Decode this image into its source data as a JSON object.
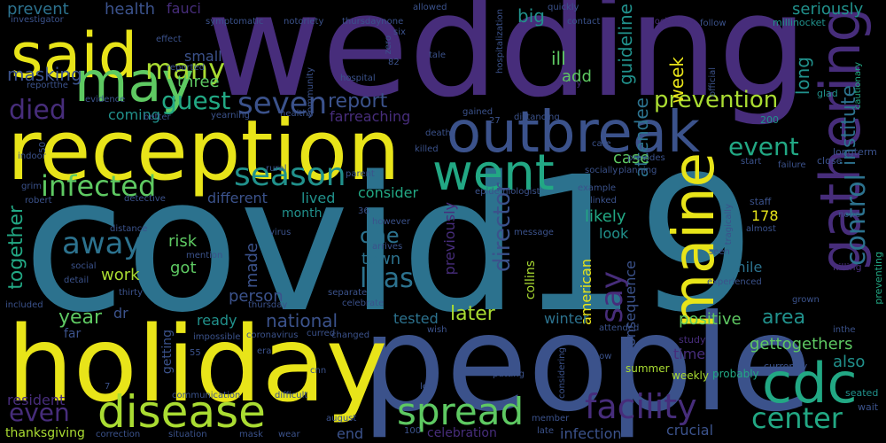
{
  "palette": {
    "background": "#000000",
    "yellow": "#e8e419",
    "lime": "#aadc32",
    "green": "#5ec962",
    "teal": "#22a884",
    "cyan": "#21918c",
    "blue": "#2c728e",
    "indigo": "#3b528b",
    "purple": "#472d7b",
    "violet": "#440154"
  },
  "words": [
    {
      "text": "covid19",
      "color": "#2c728e"
    },
    {
      "text": "wedding",
      "color": "#472d7b"
    },
    {
      "text": "people",
      "color": "#3b528b"
    },
    {
      "text": "holiday",
      "color": "#e8e419"
    },
    {
      "text": "reception",
      "color": "#e8e419"
    },
    {
      "text": "outbreak",
      "color": "#3b528b"
    },
    {
      "text": "said",
      "color": "#e8e419"
    },
    {
      "text": "may",
      "color": "#5ec962"
    },
    {
      "text": "went",
      "color": "#22a884"
    },
    {
      "text": "gathering",
      "color": "#472d7b"
    },
    {
      "text": "maine",
      "color": "#e8e419"
    },
    {
      "text": "cdc",
      "color": "#22a884"
    },
    {
      "text": "disease",
      "color": "#aadc32"
    },
    {
      "text": "spread",
      "color": "#5ec962"
    },
    {
      "text": "facility",
      "color": "#472d7b"
    },
    {
      "text": "center",
      "color": "#22a884"
    },
    {
      "text": "control",
      "color": "#2c728e"
    },
    {
      "text": "season",
      "color": "#21918c"
    },
    {
      "text": "infected",
      "color": "#5ec962"
    },
    {
      "text": "away",
      "color": "#2c728e"
    },
    {
      "text": "least",
      "color": "#2c728e"
    },
    {
      "text": "seven",
      "color": "#3b528b"
    },
    {
      "text": "many",
      "color": "#aadc32"
    },
    {
      "text": "guest",
      "color": "#22a884"
    },
    {
      "text": "died",
      "color": "#472d7b"
    },
    {
      "text": "even",
      "color": "#472d7b"
    },
    {
      "text": "event",
      "color": "#22a884"
    },
    {
      "text": "prevention",
      "color": "#aadc32"
    },
    {
      "text": "report",
      "color": "#3b528b"
    },
    {
      "text": "one",
      "color": "#2c728e"
    },
    {
      "text": "say",
      "color": "#472d7b"
    },
    {
      "text": "director",
      "color": "#3b528b"
    },
    {
      "text": "institute",
      "color": "#2c728e"
    },
    {
      "text": "long",
      "color": "#21918c"
    },
    {
      "text": "seriously",
      "color": "#21918c"
    },
    {
      "text": "guideline",
      "color": "#21918c"
    },
    {
      "text": "attendee",
      "color": "#2c728e"
    },
    {
      "text": "week",
      "color": "#e8e419"
    },
    {
      "text": "big",
      "color": "#21918c"
    },
    {
      "text": "ill",
      "color": "#5ec962"
    },
    {
      "text": "add",
      "color": "#5ec962"
    },
    {
      "text": "health",
      "color": "#3b528b"
    },
    {
      "text": "fauci",
      "color": "#472d7b"
    },
    {
      "text": "prevent",
      "color": "#2c728e"
    },
    {
      "text": "masking",
      "color": "#3b528b"
    },
    {
      "text": "small",
      "color": "#3b528b"
    },
    {
      "text": "three",
      "color": "#5ec962"
    },
    {
      "text": "coming",
      "color": "#21918c"
    },
    {
      "text": "farreaching",
      "color": "#472d7b"
    },
    {
      "text": "consider",
      "color": "#22a884"
    },
    {
      "text": "case",
      "color": "#5ec962"
    },
    {
      "text": "different",
      "color": "#3b528b"
    },
    {
      "text": "lived",
      "color": "#21918c"
    },
    {
      "text": "month",
      "color": "#21918c"
    },
    {
      "text": "likely",
      "color": "#22a884"
    },
    {
      "text": "look",
      "color": "#21918c"
    },
    {
      "text": "178",
      "color": "#e8e419"
    },
    {
      "text": "together",
      "color": "#22a884"
    },
    {
      "text": "risk",
      "color": "#5ec962"
    },
    {
      "text": "got",
      "color": "#5ec962"
    },
    {
      "text": "made",
      "color": "#3b528b"
    },
    {
      "text": "town",
      "color": "#2c728e"
    },
    {
      "text": "person",
      "color": "#3b528b"
    },
    {
      "text": "work",
      "color": "#aadc32"
    },
    {
      "text": "previously",
      "color": "#472d7b"
    },
    {
      "text": "american",
      "color": "#e8e419"
    },
    {
      "text": "mile",
      "color": "#2c728e"
    },
    {
      "text": "year",
      "color": "#5ec962"
    },
    {
      "text": "dr",
      "color": "#3b528b"
    },
    {
      "text": "national",
      "color": "#3b528b"
    },
    {
      "text": "later",
      "color": "#aadc32"
    },
    {
      "text": "tested",
      "color": "#2c728e"
    },
    {
      "text": "ready",
      "color": "#21918c"
    },
    {
      "text": "winter",
      "color": "#2c728e"
    },
    {
      "text": "positive",
      "color": "#5ec962"
    },
    {
      "text": "area",
      "color": "#21918c"
    },
    {
      "text": "gettogethers",
      "color": "#5ec962"
    },
    {
      "text": "also",
      "color": "#21918c"
    },
    {
      "text": "consequence",
      "color": "#3b528b"
    },
    {
      "text": "far",
      "color": "#3b528b"
    },
    {
      "text": "getting",
      "color": "#3b528b"
    },
    {
      "text": "resident",
      "color": "#472d7b"
    },
    {
      "text": "end",
      "color": "#3b528b"
    },
    {
      "text": "celebration",
      "color": "#472d7b"
    },
    {
      "text": "infection",
      "color": "#3b528b"
    },
    {
      "text": "crucial",
      "color": "#3b528b"
    },
    {
      "text": "thanksgiving",
      "color": "#aadc32"
    },
    {
      "text": "collins",
      "color": "#aadc32"
    },
    {
      "text": "time",
      "color": "#472d7b"
    },
    {
      "text": "weekly",
      "color": "#aadc32"
    },
    {
      "text": "probably",
      "color": "#22a884"
    },
    {
      "text": "study",
      "color": "#472d7b"
    },
    {
      "text": "summer",
      "color": "#aadc32"
    },
    {
      "text": "currently",
      "color": "#3b528b"
    },
    {
      "text": "seated",
      "color": "#21918c"
    },
    {
      "text": "wait",
      "color": "#3b528b"
    },
    {
      "text": "staff",
      "color": "#3b528b"
    },
    {
      "text": "200",
      "color": "#21918c"
    },
    {
      "text": "longterm",
      "color": "#3b528b"
    },
    {
      "text": "close",
      "color": "#3b528b"
    },
    {
      "text": "none",
      "color": "#3b528b"
    },
    {
      "text": "almost",
      "color": "#3b528b"
    },
    {
      "text": "killing",
      "color": "#472d7b"
    },
    {
      "text": "preventing",
      "color": "#22a884"
    },
    {
      "text": "glad",
      "color": "#21918c"
    },
    {
      "text": "cautionary",
      "color": "#22a884"
    },
    {
      "text": "millinocket",
      "color": "#21918c"
    },
    {
      "text": "official",
      "color": "#3b528b"
    },
    {
      "text": "follow",
      "color": "#3b528b"
    },
    {
      "text": "lockdown",
      "color": "#472d7b"
    },
    {
      "text": "contact",
      "color": "#3b528b"
    },
    {
      "text": "quickly",
      "color": "#3b528b"
    },
    {
      "text": "weary",
      "color": "#472d7b"
    },
    {
      "text": "investigator",
      "color": "#3b528b"
    },
    {
      "text": "effect",
      "color": "#3b528b"
    },
    {
      "text": "symptomatic",
      "color": "#3b528b"
    },
    {
      "text": "notoriety",
      "color": "#3b528b"
    },
    {
      "text": "thursdaynone",
      "color": "#3b528b"
    },
    {
      "text": "six",
      "color": "#3b528b"
    },
    {
      "text": "allowed",
      "color": "#3b528b"
    },
    {
      "text": "hospitalization",
      "color": "#3b528b"
    },
    {
      "text": "reported",
      "color": "#3b528b"
    },
    {
      "text": "reportthe",
      "color": "#3b528b"
    },
    {
      "text": "evidence",
      "color": "#3b528b"
    },
    {
      "text": "yearning",
      "color": "#3b528b"
    },
    {
      "text": "better",
      "color": "#3b528b"
    },
    {
      "text": "healthy",
      "color": "#3b528b"
    },
    {
      "text": "hospital",
      "color": "#3b528b"
    },
    {
      "text": "community",
      "color": "#3b528b"
    },
    {
      "text": "zero",
      "color": "#3b528b"
    },
    {
      "text": "tale",
      "color": "#3b528b"
    },
    {
      "text": "82",
      "color": "#3b528b"
    },
    {
      "text": "gained",
      "color": "#3b528b"
    },
    {
      "text": "27",
      "color": "#3b528b"
    },
    {
      "text": "distancing",
      "color": "#3b528b"
    },
    {
      "text": "death",
      "color": "#3b528b"
    },
    {
      "text": "killed",
      "color": "#3b528b"
    },
    {
      "text": "indoor",
      "color": "#3b528b"
    },
    {
      "text": "grim",
      "color": "#3b528b"
    },
    {
      "text": "robert",
      "color": "#3b528b"
    },
    {
      "text": "rural",
      "color": "#3b528b"
    },
    {
      "text": "parent",
      "color": "#3b528b"
    },
    {
      "text": "detective",
      "color": "#3b528b"
    },
    {
      "text": "epidemiologist",
      "color": "#3b528b"
    },
    {
      "text": "36",
      "color": "#3b528b"
    },
    {
      "text": "however",
      "color": "#3b528b"
    },
    {
      "text": "virus",
      "color": "#3b528b"
    },
    {
      "text": "arrives",
      "color": "#3b528b"
    },
    {
      "text": "message",
      "color": "#3b528b"
    },
    {
      "text": "distance",
      "color": "#3b528b"
    },
    {
      "text": "mention",
      "color": "#3b528b"
    },
    {
      "text": "social",
      "color": "#3b528b"
    },
    {
      "text": "detail",
      "color": "#3b528b"
    },
    {
      "text": "thirty",
      "color": "#3b528b"
    },
    {
      "text": "included",
      "color": "#3b528b"
    },
    {
      "text": "thursday",
      "color": "#3b528b"
    },
    {
      "text": "separate",
      "color": "#3b528b"
    },
    {
      "text": "celebrate",
      "color": "#3b528b"
    },
    {
      "text": "curred",
      "color": "#3b528b"
    },
    {
      "text": "coronavirus",
      "color": "#3b528b"
    },
    {
      "text": "changed",
      "color": "#3b528b"
    },
    {
      "text": "impossible",
      "color": "#3b528b"
    },
    {
      "text": "era",
      "color": "#3b528b"
    },
    {
      "text": "55",
      "color": "#3b528b"
    },
    {
      "text": "communication",
      "color": "#3b528b"
    },
    {
      "text": "difficult",
      "color": "#3b528b"
    },
    {
      "text": "august",
      "color": "#3b528b"
    },
    {
      "text": "correction",
      "color": "#3b528b"
    },
    {
      "text": "situation",
      "color": "#3b528b"
    },
    {
      "text": "mask",
      "color": "#3b528b"
    },
    {
      "text": "100",
      "color": "#3b528b"
    },
    {
      "text": "late",
      "color": "#3b528b"
    },
    {
      "text": "led",
      "color": "#3b528b"
    },
    {
      "text": "putting",
      "color": "#3b528b"
    },
    {
      "text": "member",
      "color": "#3b528b"
    },
    {
      "text": "attended",
      "color": "#3b528b"
    },
    {
      "text": "know",
      "color": "#3b528b"
    },
    {
      "text": "considering",
      "color": "#3b528b"
    },
    {
      "text": "planning",
      "color": "#3b528b"
    },
    {
      "text": "socially",
      "color": "#3b528b"
    },
    {
      "text": "provides",
      "color": "#3b528b"
    },
    {
      "text": "care",
      "color": "#3b528b"
    },
    {
      "text": "example",
      "color": "#3b528b"
    },
    {
      "text": "linked",
      "color": "#3b528b"
    },
    {
      "text": "tragically",
      "color": "#3b528b"
    },
    {
      "text": "seen",
      "color": "#3b528b"
    },
    {
      "text": "experienced",
      "color": "#3b528b"
    },
    {
      "text": "failure",
      "color": "#3b528b"
    },
    {
      "text": "start",
      "color": "#3b528b"
    },
    {
      "text": "grown",
      "color": "#3b528b"
    },
    {
      "text": "inthe",
      "color": "#3b528b"
    },
    {
      "text": "wish",
      "color": "#3b528b"
    },
    {
      "text": "7",
      "color": "#3b528b"
    },
    {
      "text": "50",
      "color": "#3b528b"
    },
    {
      "text": "wear",
      "color": "#3b528b"
    },
    {
      "text": "cnn",
      "color": "#3b528b"
    }
  ]
}
